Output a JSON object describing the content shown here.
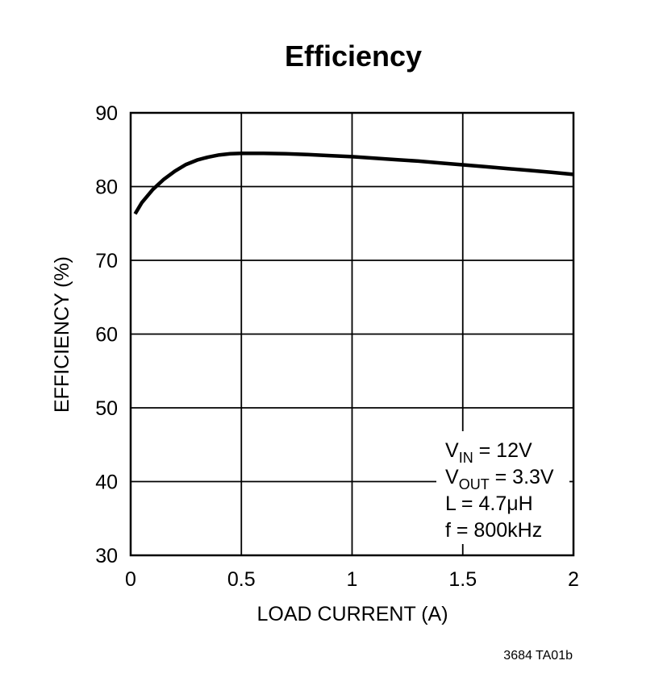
{
  "chart_data": {
    "type": "line",
    "title": "Efficiency",
    "xlabel": "LOAD CURRENT (A)",
    "ylabel": "EFFICIENCY (%)",
    "xlim": [
      0,
      2
    ],
    "ylim": [
      30,
      90
    ],
    "xticks": [
      0,
      0.5,
      1,
      1.5,
      2
    ],
    "xtick_labels": [
      "0",
      "0.5",
      "1",
      "1.5",
      "2"
    ],
    "yticks": [
      30,
      40,
      50,
      60,
      70,
      80,
      90
    ],
    "ytick_labels": [
      "30",
      "40",
      "50",
      "60",
      "70",
      "80",
      "90"
    ],
    "grid": true,
    "series": [
      {
        "x": [
          0.02,
          0.05,
          0.1,
          0.15,
          0.2,
          0.25,
          0.3,
          0.35,
          0.4,
          0.45,
          0.5,
          0.6,
          0.7,
          0.8,
          0.9,
          1.0,
          1.1,
          1.2,
          1.3,
          1.4,
          1.5,
          1.6,
          1.7,
          1.8,
          1.9,
          2.0
        ],
        "y": [
          76.3,
          77.8,
          79.6,
          81.0,
          82.1,
          83.0,
          83.6,
          84.0,
          84.3,
          84.45,
          84.5,
          84.5,
          84.45,
          84.35,
          84.2,
          84.05,
          83.85,
          83.65,
          83.45,
          83.2,
          82.95,
          82.7,
          82.45,
          82.2,
          81.95,
          81.65
        ]
      }
    ],
    "annotation": {
      "lines": [
        {
          "main": "V",
          "sub": "IN",
          "rest": " = 12V"
        },
        {
          "main": "V",
          "sub": "OUT",
          "rest": " = 3.3V"
        },
        {
          "main": "L = 4.7μH",
          "sub": "",
          "rest": ""
        },
        {
          "main": "f = 800kHz",
          "sub": "",
          "rest": ""
        }
      ]
    },
    "figure_code": "3684 TA01b"
  }
}
